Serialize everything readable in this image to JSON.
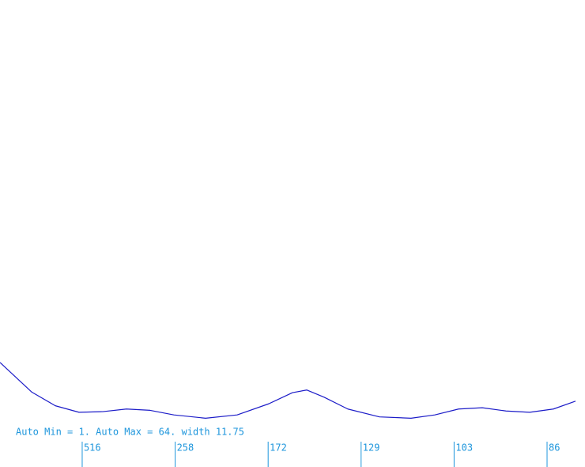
{
  "chart_data": {
    "type": "line",
    "annotation": "Auto Min = 1.  Auto Max = 64. width 11.75",
    "x": [
      0.116,
      0.456,
      0.711,
      0.966,
      1.221,
      1.476,
      1.731,
      1.986,
      2.327,
      2.667,
      3.007,
      3.262,
      3.415,
      3.602,
      3.857,
      4.197,
      4.537,
      4.793,
      5.048,
      5.303,
      5.558,
      5.813,
      6.068,
      6.306
    ],
    "series": [
      {
        "color": "#1c1cc8",
        "values": [
          8.7,
          4.2,
          2.1,
          1.1,
          1.2,
          1.6,
          1.4,
          0.7,
          0.2,
          0.7,
          2.4,
          4.1,
          4.5,
          3.4,
          1.6,
          0.4,
          0.2,
          0.7,
          1.6,
          1.8,
          1.3,
          1.1,
          1.6,
          2.8
        ]
      }
    ],
    "xlim": [
      0.116,
      6.408
    ],
    "xticks": [
      {
        "value": 1,
        "label": "516"
      },
      {
        "value": 2,
        "label": "258"
      },
      {
        "value": 3,
        "label": "172"
      },
      {
        "value": 4,
        "label": "129"
      },
      {
        "value": 5,
        "label": "103"
      },
      {
        "value": 6,
        "label": "86"
      }
    ],
    "ylim": [
      0,
      64
    ],
    "tick_color": "#1e96dc"
  }
}
